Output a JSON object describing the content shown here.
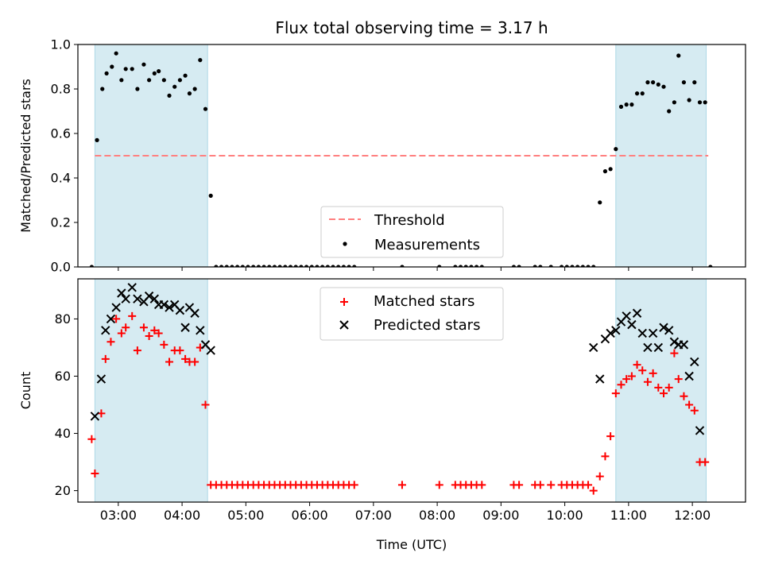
{
  "title": "Flux total observing time = 3.17 h",
  "xlabel": "Time (UTC)",
  "colors": {
    "shade": "#add8e6",
    "threshold": "#ff7f7f",
    "measurement": "#000000",
    "matched": "#ff0000",
    "predicted": "#000000"
  },
  "chart_data": [
    {
      "type": "scatter",
      "ylabel": "Matched/Predicted stars",
      "ylim": [
        0,
        1.0
      ],
      "yticks": [
        0.0,
        0.2,
        0.4,
        0.6,
        0.8,
        1.0
      ],
      "ytick_labels": [
        "0.0",
        "0.2",
        "0.4",
        "0.6",
        "0.8",
        "1.0"
      ],
      "xlim": [
        "02:22",
        "12:50"
      ],
      "xticks": [
        "03:00",
        "04:00",
        "05:00",
        "06:00",
        "07:00",
        "08:00",
        "09:00",
        "10:00",
        "11:00",
        "12:00"
      ],
      "shaded_regions": [
        [
          "02:38",
          "04:24"
        ],
        [
          "10:48",
          "12:13"
        ]
      ],
      "threshold": {
        "name": "Threshold",
        "y": 0.5,
        "x": [
          "02:38",
          "12:15"
        ]
      },
      "legend": {
        "position": "lower-center",
        "entries": [
          "Threshold",
          "Measurements"
        ]
      },
      "series": [
        {
          "name": "Measurements",
          "marker": "dot",
          "points": [
            [
              "02:35",
              0.0
            ],
            [
              "02:40",
              0.57
            ],
            [
              "02:45",
              0.8
            ],
            [
              "02:49",
              0.87
            ],
            [
              "02:54",
              0.9
            ],
            [
              "02:58",
              0.96
            ],
            [
              "03:03",
              0.84
            ],
            [
              "03:07",
              0.89
            ],
            [
              "03:13",
              0.89
            ],
            [
              "03:18",
              0.8
            ],
            [
              "03:24",
              0.91
            ],
            [
              "03:29",
              0.84
            ],
            [
              "03:34",
              0.87
            ],
            [
              "03:38",
              0.88
            ],
            [
              "03:43",
              0.84
            ],
            [
              "03:48",
              0.77
            ],
            [
              "03:53",
              0.81
            ],
            [
              "03:58",
              0.84
            ],
            [
              "04:03",
              0.86
            ],
            [
              "04:07",
              0.78
            ],
            [
              "04:12",
              0.8
            ],
            [
              "04:17",
              0.93
            ],
            [
              "04:22",
              0.71
            ],
            [
              "04:27",
              0.32
            ],
            [
              "04:32",
              0.0
            ],
            [
              "04:37",
              0.0
            ],
            [
              "04:42",
              0.0
            ],
            [
              "04:47",
              0.0
            ],
            [
              "04:52",
              0.0
            ],
            [
              "04:57",
              0.0
            ],
            [
              "05:02",
              0.0
            ],
            [
              "05:07",
              0.0
            ],
            [
              "05:12",
              0.0
            ],
            [
              "05:17",
              0.0
            ],
            [
              "05:22",
              0.0
            ],
            [
              "05:27",
              0.0
            ],
            [
              "05:32",
              0.0
            ],
            [
              "05:37",
              0.0
            ],
            [
              "05:42",
              0.0
            ],
            [
              "05:47",
              0.0
            ],
            [
              "05:52",
              0.0
            ],
            [
              "05:57",
              0.0
            ],
            [
              "06:02",
              0.0
            ],
            [
              "06:07",
              0.0
            ],
            [
              "06:12",
              0.0
            ],
            [
              "06:17",
              0.0
            ],
            [
              "06:22",
              0.0
            ],
            [
              "06:27",
              0.0
            ],
            [
              "06:32",
              0.0
            ],
            [
              "06:37",
              0.0
            ],
            [
              "06:42",
              0.0
            ],
            [
              "07:27",
              0.0
            ],
            [
              "08:02",
              0.0
            ],
            [
              "08:17",
              0.0
            ],
            [
              "08:22",
              0.0
            ],
            [
              "08:27",
              0.0
            ],
            [
              "08:32",
              0.0
            ],
            [
              "08:37",
              0.0
            ],
            [
              "08:42",
              0.0
            ],
            [
              "09:12",
              0.0
            ],
            [
              "09:17",
              0.0
            ],
            [
              "09:32",
              0.0
            ],
            [
              "09:37",
              0.0
            ],
            [
              "09:47",
              0.0
            ],
            [
              "09:57",
              0.0
            ],
            [
              "10:02",
              0.0
            ],
            [
              "10:07",
              0.0
            ],
            [
              "10:12",
              0.0
            ],
            [
              "10:17",
              0.0
            ],
            [
              "10:22",
              0.0
            ],
            [
              "10:27",
              0.0
            ],
            [
              "10:33",
              0.29
            ],
            [
              "10:38",
              0.43
            ],
            [
              "10:43",
              0.44
            ],
            [
              "10:48",
              0.53
            ],
            [
              "10:53",
              0.72
            ],
            [
              "10:58",
              0.73
            ],
            [
              "11:03",
              0.73
            ],
            [
              "11:08",
              0.78
            ],
            [
              "11:13",
              0.78
            ],
            [
              "11:18",
              0.83
            ],
            [
              "11:23",
              0.83
            ],
            [
              "11:28",
              0.82
            ],
            [
              "11:33",
              0.81
            ],
            [
              "11:38",
              0.7
            ],
            [
              "11:43",
              0.74
            ],
            [
              "11:47",
              0.95
            ],
            [
              "11:52",
              0.83
            ],
            [
              "11:57",
              0.75
            ],
            [
              "12:02",
              0.83
            ],
            [
              "12:07",
              0.74
            ],
            [
              "12:12",
              0.74
            ],
            [
              "12:17",
              0.0
            ]
          ]
        }
      ]
    },
    {
      "type": "scatter",
      "ylabel": "Count",
      "ylim": [
        16,
        94
      ],
      "yticks": [
        20,
        40,
        60,
        80
      ],
      "ytick_labels": [
        "20",
        "40",
        "60",
        "80"
      ],
      "xlim": [
        "02:22",
        "12:50"
      ],
      "xticks": [
        "03:00",
        "04:00",
        "05:00",
        "06:00",
        "07:00",
        "08:00",
        "09:00",
        "10:00",
        "11:00",
        "12:00"
      ],
      "xtick_labels": [
        "03:00",
        "04:00",
        "05:00",
        "06:00",
        "07:00",
        "08:00",
        "09:00",
        "10:00",
        "11:00",
        "12:00"
      ],
      "shaded_regions": [
        [
          "02:38",
          "04:24"
        ],
        [
          "10:48",
          "12:13"
        ]
      ],
      "legend": {
        "position": "upper-center",
        "entries": [
          "Matched stars",
          "Predicted stars"
        ]
      },
      "series": [
        {
          "name": "Matched stars",
          "marker": "plus",
          "points": [
            [
              "02:35",
              38
            ],
            [
              "02:38",
              26
            ],
            [
              "02:44",
              47
            ],
            [
              "02:48",
              66
            ],
            [
              "02:53",
              72
            ],
            [
              "02:58",
              80
            ],
            [
              "03:03",
              75
            ],
            [
              "03:07",
              77
            ],
            [
              "03:13",
              81
            ],
            [
              "03:18",
              69
            ],
            [
              "03:24",
              77
            ],
            [
              "03:29",
              74
            ],
            [
              "03:34",
              76
            ],
            [
              "03:38",
              75
            ],
            [
              "03:43",
              71
            ],
            [
              "03:48",
              65
            ],
            [
              "03:53",
              69
            ],
            [
              "03:58",
              69
            ],
            [
              "04:03",
              66
            ],
            [
              "04:07",
              65
            ],
            [
              "04:12",
              65
            ],
            [
              "04:17",
              70
            ],
            [
              "04:22",
              50
            ],
            [
              "04:27",
              22
            ],
            [
              "04:32",
              22
            ],
            [
              "04:37",
              22
            ],
            [
              "04:42",
              22
            ],
            [
              "04:47",
              22
            ],
            [
              "04:52",
              22
            ],
            [
              "04:57",
              22
            ],
            [
              "05:02",
              22
            ],
            [
              "05:07",
              22
            ],
            [
              "05:12",
              22
            ],
            [
              "05:17",
              22
            ],
            [
              "05:22",
              22
            ],
            [
              "05:27",
              22
            ],
            [
              "05:32",
              22
            ],
            [
              "05:37",
              22
            ],
            [
              "05:42",
              22
            ],
            [
              "05:47",
              22
            ],
            [
              "05:52",
              22
            ],
            [
              "05:57",
              22
            ],
            [
              "06:02",
              22
            ],
            [
              "06:07",
              22
            ],
            [
              "06:12",
              22
            ],
            [
              "06:17",
              22
            ],
            [
              "06:22",
              22
            ],
            [
              "06:27",
              22
            ],
            [
              "06:32",
              22
            ],
            [
              "06:37",
              22
            ],
            [
              "06:42",
              22
            ],
            [
              "07:27",
              22
            ],
            [
              "08:02",
              22
            ],
            [
              "08:17",
              22
            ],
            [
              "08:22",
              22
            ],
            [
              "08:27",
              22
            ],
            [
              "08:32",
              22
            ],
            [
              "08:37",
              22
            ],
            [
              "08:42",
              22
            ],
            [
              "09:12",
              22
            ],
            [
              "09:17",
              22
            ],
            [
              "09:32",
              22
            ],
            [
              "09:37",
              22
            ],
            [
              "09:47",
              22
            ],
            [
              "09:57",
              22
            ],
            [
              "10:02",
              22
            ],
            [
              "10:07",
              22
            ],
            [
              "10:12",
              22
            ],
            [
              "10:17",
              22
            ],
            [
              "10:22",
              22
            ],
            [
              "10:27",
              20
            ],
            [
              "10:33",
              25
            ],
            [
              "10:38",
              32
            ],
            [
              "10:43",
              39
            ],
            [
              "10:48",
              54
            ],
            [
              "10:53",
              57
            ],
            [
              "10:58",
              59
            ],
            [
              "11:03",
              60
            ],
            [
              "11:08",
              64
            ],
            [
              "11:13",
              62
            ],
            [
              "11:18",
              58
            ],
            [
              "11:23",
              61
            ],
            [
              "11:28",
              56
            ],
            [
              "11:33",
              54
            ],
            [
              "11:38",
              56
            ],
            [
              "11:43",
              68
            ],
            [
              "11:47",
              59
            ],
            [
              "11:52",
              53
            ],
            [
              "11:57",
              50
            ],
            [
              "12:02",
              48
            ],
            [
              "12:07",
              30
            ],
            [
              "12:12",
              30
            ]
          ]
        },
        {
          "name": "Predicted stars",
          "marker": "x",
          "points": [
            [
              "02:38",
              46
            ],
            [
              "02:44",
              59
            ],
            [
              "02:48",
              76
            ],
            [
              "02:53",
              80
            ],
            [
              "02:58",
              84
            ],
            [
              "03:03",
              89
            ],
            [
              "03:07",
              87
            ],
            [
              "03:13",
              91
            ],
            [
              "03:18",
              87
            ],
            [
              "03:24",
              86
            ],
            [
              "03:29",
              88
            ],
            [
              "03:34",
              87
            ],
            [
              "03:38",
              85
            ],
            [
              "03:43",
              85
            ],
            [
              "03:48",
              84
            ],
            [
              "03:53",
              85
            ],
            [
              "03:58",
              83
            ],
            [
              "04:03",
              77
            ],
            [
              "04:07",
              84
            ],
            [
              "04:12",
              82
            ],
            [
              "04:17",
              76
            ],
            [
              "04:22",
              71
            ],
            [
              "04:27",
              69
            ],
            [
              "10:27",
              70
            ],
            [
              "10:33",
              59
            ],
            [
              "10:38",
              73
            ],
            [
              "10:43",
              75
            ],
            [
              "10:48",
              76
            ],
            [
              "10:53",
              79
            ],
            [
              "10:58",
              81
            ],
            [
              "11:03",
              78
            ],
            [
              "11:08",
              82
            ],
            [
              "11:13",
              75
            ],
            [
              "11:18",
              70
            ],
            [
              "11:23",
              75
            ],
            [
              "11:28",
              70
            ],
            [
              "11:33",
              77
            ],
            [
              "11:38",
              76
            ],
            [
              "11:43",
              72
            ],
            [
              "11:47",
              71
            ],
            [
              "11:52",
              71
            ],
            [
              "11:57",
              60
            ],
            [
              "12:02",
              65
            ],
            [
              "12:07",
              41
            ]
          ]
        }
      ]
    }
  ]
}
